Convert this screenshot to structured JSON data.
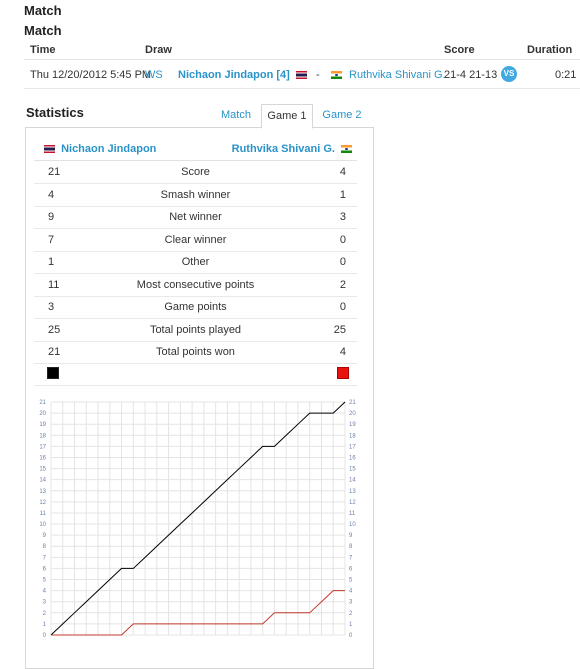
{
  "titles": [
    "Match",
    "Match"
  ],
  "match_table": {
    "headers": {
      "time": "Time",
      "draw": "Draw",
      "score": "Score",
      "duration": "Duration"
    },
    "row": {
      "time": "Thu 12/20/2012 5:45 PM",
      "draw": "WS",
      "player1": "Nichaon Jindapon [4]",
      "separator": "-",
      "player2": "Ruthvika Shivani G.",
      "score": "21-4 21-13",
      "vs_badge": "VS",
      "duration": "0:21"
    }
  },
  "statistics": {
    "title": "Statistics",
    "tabs": [
      "Match",
      "Game 1",
      "Game 2"
    ],
    "active_tab": "Game 1",
    "player1": "Nichaon Jindapon",
    "player2": "Ruthvika Shivani G.",
    "rows": [
      {
        "label": "Score",
        "p1": "21",
        "p2": "4"
      },
      {
        "label": "Smash winner",
        "p1": "4",
        "p2": "1"
      },
      {
        "label": "Net winner",
        "p1": "9",
        "p2": "3"
      },
      {
        "label": "Clear winner",
        "p1": "7",
        "p2": "0"
      },
      {
        "label": "Other",
        "p1": "1",
        "p2": "0"
      },
      {
        "label": "Most consecutive points",
        "p1": "11",
        "p2": "2"
      },
      {
        "label": "Game points",
        "p1": "3",
        "p2": "0"
      },
      {
        "label": "Total points played",
        "p1": "25",
        "p2": "25"
      },
      {
        "label": "Total points won",
        "p1": "21",
        "p2": "4"
      }
    ],
    "colors": {
      "player1": "#000000",
      "player2": "#e8140c",
      "link": "#2a93c9"
    }
  },
  "chart_data": {
    "type": "line",
    "title": "",
    "xlabel": "",
    "ylabel": "",
    "x": [
      0,
      1,
      2,
      3,
      4,
      5,
      6,
      7,
      8,
      9,
      10,
      11,
      12,
      13,
      14,
      15,
      16,
      17,
      18,
      19,
      20,
      21,
      22,
      23,
      24,
      25
    ],
    "ylim": [
      0,
      21
    ],
    "yticks": [
      0,
      1,
      2,
      3,
      4,
      5,
      6,
      7,
      8,
      9,
      10,
      11,
      12,
      13,
      14,
      15,
      16,
      17,
      18,
      19,
      20,
      21
    ],
    "grid": true,
    "series": [
      {
        "color": "#000000",
        "values": [
          0,
          1,
          2,
          3,
          4,
          5,
          6,
          6,
          7,
          8,
          9,
          10,
          11,
          12,
          13,
          14,
          15,
          16,
          17,
          17,
          18,
          19,
          20,
          20,
          20,
          21
        ]
      },
      {
        "color": "#c0392b",
        "values": [
          0,
          0,
          0,
          0,
          0,
          0,
          0,
          1,
          1,
          1,
          1,
          1,
          1,
          1,
          1,
          1,
          1,
          1,
          1,
          2,
          2,
          2,
          2,
          3,
          4,
          4
        ]
      }
    ]
  }
}
